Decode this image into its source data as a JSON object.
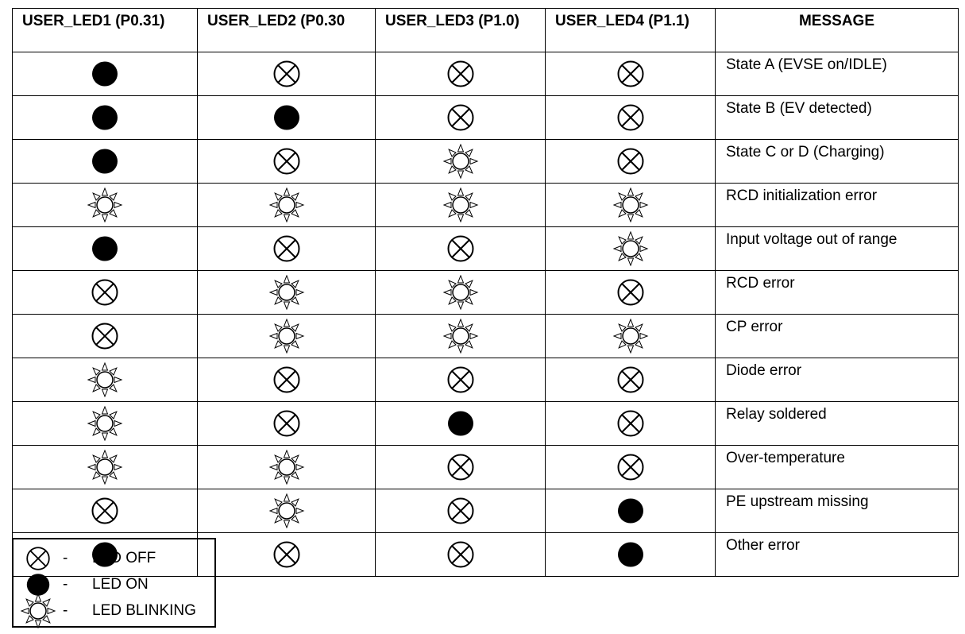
{
  "headers": [
    "USER_LED1 (P0.31)",
    "USER_LED2 (P0.30",
    "USER_LED3 (P1.0)",
    "USER_LED4 (P1.1)",
    "MESSAGE"
  ],
  "rows": [
    {
      "leds": [
        "on",
        "off",
        "off",
        "off"
      ],
      "message": "State A (EVSE on/IDLE)"
    },
    {
      "leds": [
        "on",
        "on",
        "off",
        "off"
      ],
      "message": "State B (EV detected)"
    },
    {
      "leds": [
        "on",
        "off",
        "blinking",
        "off"
      ],
      "message": "State C or D (Charging)"
    },
    {
      "leds": [
        "blinking",
        "blinking",
        "blinking",
        "blinking"
      ],
      "message": "RCD initialization error"
    },
    {
      "leds": [
        "on",
        "off",
        "off",
        "blinking"
      ],
      "message": "Input voltage out of range"
    },
    {
      "leds": [
        "off",
        "blinking",
        "blinking",
        "off"
      ],
      "message": "RCD error"
    },
    {
      "leds": [
        "off",
        "blinking",
        "blinking",
        "blinking"
      ],
      "message": "CP error"
    },
    {
      "leds": [
        "blinking",
        "off",
        "off",
        "off"
      ],
      "message": "Diode error"
    },
    {
      "leds": [
        "blinking",
        "off",
        "on",
        "off"
      ],
      "message": "Relay soldered"
    },
    {
      "leds": [
        "blinking",
        "blinking",
        "off",
        "off"
      ],
      "message": "Over-temperature"
    },
    {
      "leds": [
        "off",
        "blinking",
        "off",
        "on"
      ],
      "message": "PE upstream missing"
    },
    {
      "leds": [
        "on",
        "off",
        "off",
        "on"
      ],
      "message": "Other error"
    }
  ],
  "legend": [
    {
      "state": "off",
      "dash": "-",
      "label": "LED OFF"
    },
    {
      "state": "on",
      "dash": "-",
      "label": "LED ON"
    },
    {
      "state": "blinking",
      "dash": "-",
      "label": "LED BLINKING"
    }
  ]
}
